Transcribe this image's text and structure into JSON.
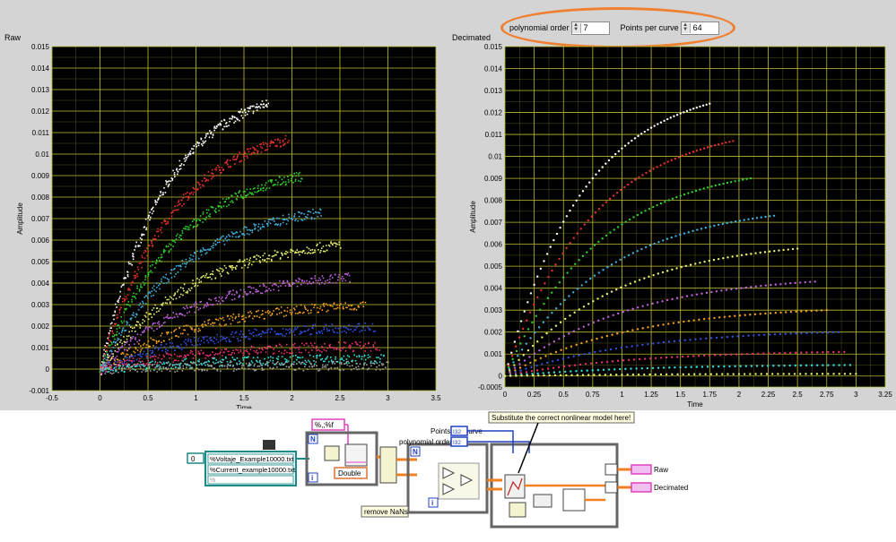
{
  "controls": {
    "polynomial_order_label": "polynomial order",
    "polynomial_order_value": "7",
    "points_per_curve_label": "Points per curve",
    "points_per_curve_value": "64"
  },
  "chart_data": [
    {
      "type": "scatter",
      "title": "Raw",
      "xlabel": "Time",
      "ylabel": "Amplitude",
      "xlim": [
        -0.5,
        3.5
      ],
      "ylim": [
        -0.001,
        0.015
      ],
      "xticks": [
        "-0.5",
        "0",
        "0.5",
        "1",
        "1.5",
        "2",
        "2.5",
        "3",
        "3.5"
      ],
      "yticks": [
        "-0.001",
        "0",
        "0.001",
        "0.002",
        "0.003",
        "0.004",
        "0.005",
        "0.006",
        "0.007",
        "0.008",
        "0.009",
        "0.01",
        "0.011",
        "0.012",
        "0.013",
        "0.014",
        "0.015"
      ],
      "background": "#000000",
      "grid": true,
      "grid_color": "#b8b830",
      "series": [
        {
          "color": "#ffffff",
          "x_end": 1.75,
          "y_end": 0.0124
        },
        {
          "color": "#e83030",
          "x_end": 1.95,
          "y_end": 0.0107
        },
        {
          "color": "#30d030",
          "x_end": 2.1,
          "y_end": 0.009
        },
        {
          "color": "#40b0e0",
          "x_end": 2.3,
          "y_end": 0.0073
        },
        {
          "color": "#e8f070",
          "x_end": 2.5,
          "y_end": 0.0058
        },
        {
          "color": "#c060e0",
          "x_end": 2.6,
          "y_end": 0.0043
        },
        {
          "color": "#f0a020",
          "x_end": 2.75,
          "y_end": 0.003
        },
        {
          "color": "#3050e0",
          "x_end": 2.85,
          "y_end": 0.002
        },
        {
          "color": "#e83070",
          "x_end": 2.9,
          "y_end": 0.0011
        },
        {
          "color": "#30e0e0",
          "x_end": 2.95,
          "y_end": 0.0005
        },
        {
          "color": "#a0a0a0",
          "x_end": 3.0,
          "y_end": 0.0002
        }
      ]
    },
    {
      "type": "scatter",
      "title": "Decimated",
      "xlabel": "Time",
      "ylabel": "Amplitude",
      "xlim": [
        0,
        3.25
      ],
      "ylim": [
        -0.0005,
        0.015
      ],
      "xticks": [
        "0",
        "0.25",
        "0.5",
        "0.75",
        "1",
        "1.25",
        "1.5",
        "1.75",
        "2",
        "2.25",
        "2.5",
        "2.75",
        "3",
        "3.25"
      ],
      "yticks": [
        "-0.0005",
        "0",
        "0.001",
        "0.002",
        "0.003",
        "0.004",
        "0.005",
        "0.006",
        "0.007",
        "0.008",
        "0.009",
        "0.01",
        "0.011",
        "0.012",
        "0.013",
        "0.014",
        "0.015"
      ],
      "background": "#000000",
      "grid": true,
      "grid_color": "#b8b830",
      "points_per_curve": 64,
      "series": [
        {
          "color": "#ffffff",
          "x_end": 1.75,
          "y_end": 0.0124
        },
        {
          "color": "#e83030",
          "x_end": 1.95,
          "y_end": 0.0107
        },
        {
          "color": "#30d030",
          "x_end": 2.1,
          "y_end": 0.009
        },
        {
          "color": "#40b0e0",
          "x_end": 2.3,
          "y_end": 0.0073
        },
        {
          "color": "#e8f070",
          "x_end": 2.5,
          "y_end": 0.0058
        },
        {
          "color": "#c060e0",
          "x_end": 2.65,
          "y_end": 0.0043
        },
        {
          "color": "#f0a020",
          "x_end": 2.75,
          "y_end": 0.003
        },
        {
          "color": "#3050e0",
          "x_end": 2.85,
          "y_end": 0.002
        },
        {
          "color": "#e83070",
          "x_end": 2.9,
          "y_end": 0.0011
        },
        {
          "color": "#30e0e0",
          "x_end": 2.95,
          "y_end": 0.0005
        },
        {
          "color": "#e8f070",
          "x_end": 3.0,
          "y_end": 0.0001
        }
      ]
    }
  ],
  "diagram": {
    "format_string": "%,;%f",
    "zero_const": "0",
    "path1": "%Voltaje_Example10000.txt",
    "path2": "%Current_example10000.txt",
    "path3": "%",
    "double_label": "Double",
    "loop_n": "N",
    "loop_i": "i",
    "remove_nans": "remove NaNs",
    "points_per_curve": "Points per curve",
    "polynomial_order": "polynomial order",
    "i32": "I32",
    "note": "Substitute the correct nonlinear model here!",
    "raw": "Raw",
    "decimated": "Decimated",
    "colors": {
      "orange": "#f08020",
      "blue": "#2040c0",
      "pink": "#e040c0",
      "teal": "#1b8a8a",
      "brown": "#c08040"
    }
  }
}
